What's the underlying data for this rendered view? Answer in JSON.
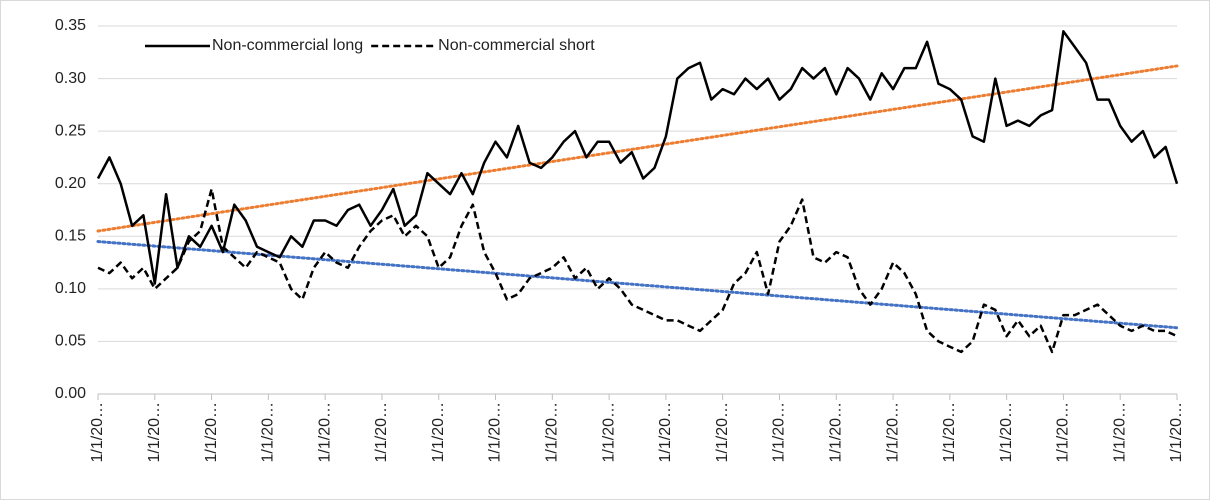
{
  "chart_data": {
    "type": "line",
    "categories": [
      "1/1/20…",
      null,
      null,
      null,
      null,
      "1/1/20…",
      null,
      null,
      null,
      null,
      "1/1/20…",
      null,
      null,
      null,
      null,
      "1/1/20…",
      null,
      null,
      null,
      null,
      "1/1/20…",
      null,
      null,
      null,
      null,
      "1/1/20…",
      null,
      null,
      null,
      null,
      "1/1/20…",
      null,
      null,
      null,
      null,
      "1/1/20…",
      null,
      null,
      null,
      null,
      "1/1/20…",
      null,
      null,
      null,
      null,
      "1/1/20…",
      null,
      null,
      null,
      null,
      "1/1/20…",
      null,
      null,
      null,
      null,
      "1/1/20…",
      null,
      null,
      null,
      null,
      "1/1/20…",
      null,
      null,
      null,
      null,
      "1/1/20…",
      null,
      null,
      null,
      null,
      "1/1/20…",
      null,
      null,
      null,
      null,
      "1/1/20…",
      null,
      null,
      null,
      null,
      "1/1/20…",
      null,
      null,
      null,
      null,
      "1/1/20…",
      null,
      null,
      null,
      null,
      "1/1/20…",
      null,
      null,
      null,
      null,
      "1/1/20…"
    ],
    "series": [
      {
        "name": "Non-commercial long",
        "color": "#000000",
        "dash": "solid",
        "values": [
          0.205,
          0.225,
          0.2,
          0.16,
          0.17,
          0.105,
          0.19,
          0.12,
          0.15,
          0.14,
          0.16,
          0.135,
          0.18,
          0.165,
          0.14,
          0.135,
          0.13,
          0.15,
          0.14,
          0.165,
          0.165,
          0.16,
          0.175,
          0.18,
          0.16,
          0.175,
          0.195,
          0.16,
          0.17,
          0.21,
          0.2,
          0.19,
          0.21,
          0.19,
          0.22,
          0.24,
          0.225,
          0.255,
          0.22,
          0.215,
          0.225,
          0.24,
          0.25,
          0.225,
          0.24,
          0.24,
          0.22,
          0.23,
          0.205,
          0.215,
          0.245,
          0.3,
          0.31,
          0.315,
          0.28,
          0.29,
          0.285,
          0.3,
          0.29,
          0.3,
          0.28,
          0.29,
          0.31,
          0.3,
          0.31,
          0.285,
          0.31,
          0.3,
          0.28,
          0.305,
          0.29,
          0.31,
          0.31,
          0.335,
          0.295,
          0.29,
          0.28,
          0.245,
          0.24,
          0.3,
          0.255,
          0.26,
          0.255,
          0.265,
          0.27,
          0.345,
          0.33,
          0.315,
          0.28,
          0.28,
          0.255,
          0.24,
          0.25,
          0.225,
          0.235,
          0.2
        ]
      },
      {
        "name": "Non-commercial short",
        "color": "#000000",
        "dash": "dashed",
        "values": [
          0.12,
          0.115,
          0.125,
          0.11,
          0.12,
          0.1,
          0.11,
          0.12,
          0.145,
          0.155,
          0.195,
          0.14,
          0.13,
          0.12,
          0.135,
          0.13,
          0.125,
          0.1,
          0.09,
          0.12,
          0.135,
          0.125,
          0.12,
          0.14,
          0.155,
          0.165,
          0.17,
          0.15,
          0.16,
          0.15,
          0.12,
          0.13,
          0.16,
          0.18,
          0.135,
          0.115,
          0.09,
          0.095,
          0.11,
          0.115,
          0.12,
          0.13,
          0.11,
          0.12,
          0.1,
          0.11,
          0.1,
          0.085,
          0.08,
          0.075,
          0.07,
          0.07,
          0.065,
          0.06,
          0.07,
          0.08,
          0.105,
          0.115,
          0.135,
          0.095,
          0.145,
          0.16,
          0.185,
          0.13,
          0.125,
          0.135,
          0.13,
          0.1,
          0.085,
          0.1,
          0.125,
          0.115,
          0.095,
          0.06,
          0.05,
          0.045,
          0.04,
          0.05,
          0.085,
          0.08,
          0.055,
          0.07,
          0.055,
          0.065,
          0.04,
          0.075,
          0.075,
          0.08,
          0.085,
          0.075,
          0.065,
          0.06,
          0.065,
          0.06,
          0.06,
          0.055
        ]
      }
    ],
    "trendlines": [
      {
        "color": "#ed7d31",
        "values": [
          0.155,
          0.312
        ]
      },
      {
        "color": "#4472c4",
        "values": [
          0.145,
          0.063
        ]
      }
    ],
    "ylim": [
      0,
      0.35
    ],
    "yticks": [
      {
        "value": 0,
        "label": "0.00"
      },
      0.05,
      {
        "value": 0.1,
        "label": "0.10"
      },
      0.15,
      {
        "value": 0.2,
        "label": "0.20"
      },
      0.25,
      {
        "value": 0.3,
        "label": "0.30"
      },
      0.35
    ],
    "grid": true,
    "legend": "top-left"
  }
}
